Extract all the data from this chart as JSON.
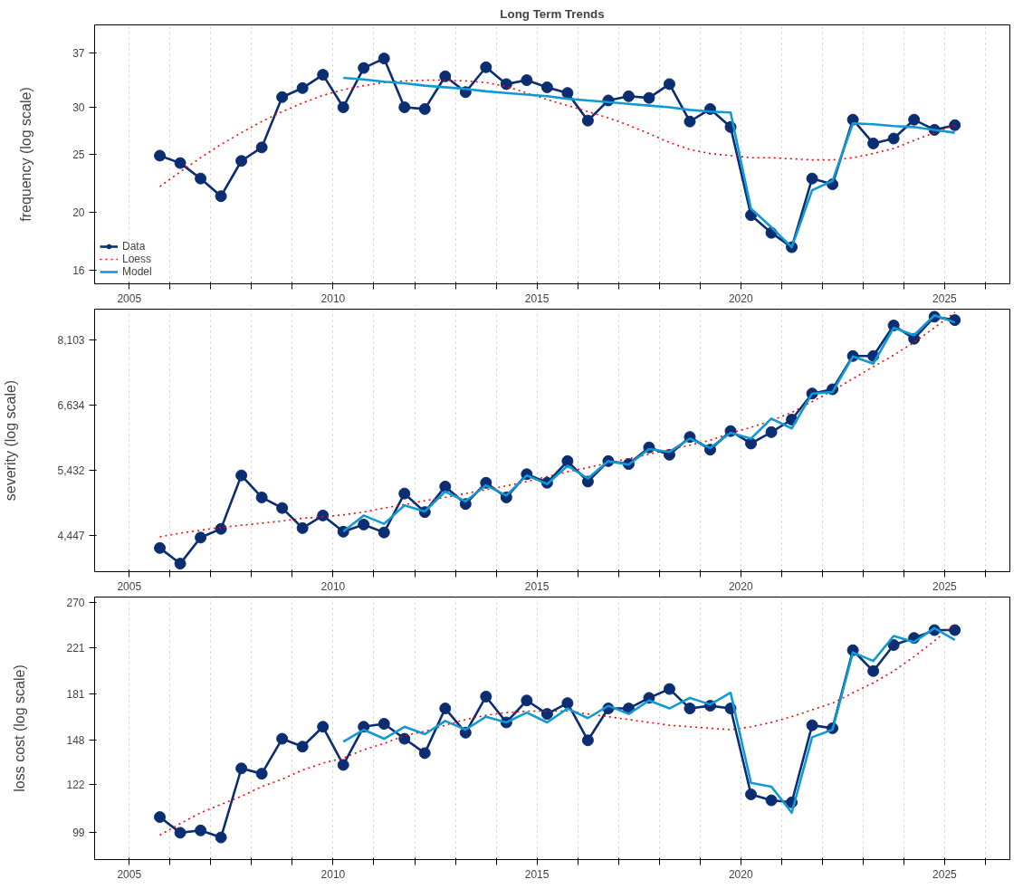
{
  "chart_data": [
    {
      "type": "line",
      "title": "Long Term Trends",
      "ylabel": "frequency (log scale)",
      "log": true,
      "grid": "x",
      "legend": "bottom left",
      "x": [
        2005.75,
        2006.25,
        2006.75,
        2007.25,
        2007.75,
        2008.25,
        2008.75,
        2009.25,
        2009.75,
        2010.25,
        2010.75,
        2011.25,
        2011.75,
        2012.25,
        2012.75,
        2013.25,
        2013.75,
        2014.25,
        2014.75,
        2015.25,
        2015.75,
        2016.25,
        2016.75,
        2017.25,
        2017.75,
        2018.25,
        2018.75,
        2019.25,
        2019.75,
        2020.25,
        2020.75,
        2021.25,
        2021.75,
        2022.25,
        2022.75,
        2023.25,
        2023.75,
        2024.25,
        2024.75,
        2025.25
      ],
      "xlim": [
        2004.15,
        2026.6
      ],
      "xticks": [
        2005,
        {
          "value": 2006,
          "label": null
        },
        {
          "value": 2007,
          "label": null
        },
        {
          "value": 2008,
          "label": null
        },
        {
          "value": 2009,
          "label": null
        },
        2010,
        {
          "value": 2011,
          "label": null
        },
        {
          "value": 2012,
          "label": null
        },
        {
          "value": 2013,
          "label": null
        },
        {
          "value": 2014,
          "label": null
        },
        2015,
        {
          "value": 2016,
          "label": null
        },
        {
          "value": 2017,
          "label": null
        },
        {
          "value": 2018,
          "label": null
        },
        {
          "value": 2019,
          "label": null
        },
        2020,
        {
          "value": 2021,
          "label": null
        },
        {
          "value": 2022,
          "label": null
        },
        {
          "value": 2023,
          "label": null
        },
        {
          "value": 2024,
          "label": null
        },
        2025,
        {
          "value": 2026,
          "label": null
        }
      ],
      "ylim": [
        15.2,
        41.2
      ],
      "yticks": [
        16,
        20,
        25,
        30,
        37
      ],
      "series": [
        {
          "name": "Data",
          "color": "#0b2d72",
          "marker": "circle",
          "line_style": "solid",
          "values": [
            24.9,
            24.2,
            22.8,
            21.3,
            24.4,
            25.7,
            31.2,
            32.3,
            34.0,
            30.0,
            34.9,
            36.2,
            30.0,
            29.8,
            33.8,
            31.8,
            35.0,
            32.8,
            33.3,
            32.4,
            31.7,
            28.5,
            30.8,
            31.3,
            31.1,
            32.8,
            28.4,
            29.8,
            27.8,
            19.8,
            18.5,
            17.5,
            22.8,
            22.3,
            28.6,
            26.1,
            26.6,
            28.6,
            27.5,
            28.0
          ]
        },
        {
          "name": "Loess",
          "color": "#ff0000",
          "marker": "none",
          "line_style": "dotted",
          "values": [
            22.1,
            23.4,
            24.7,
            26.0,
            27.2,
            28.4,
            29.5,
            30.5,
            31.4,
            32.1,
            32.6,
            33.0,
            33.2,
            33.3,
            33.3,
            33.2,
            33.0,
            32.5,
            31.7,
            30.9,
            30.2,
            29.5,
            28.8,
            28.0,
            27.1,
            26.2,
            25.5,
            25.1,
            24.9,
            24.7,
            24.7,
            24.6,
            24.5,
            24.5,
            24.7,
            25.1,
            25.6,
            26.4,
            27.2,
            28.0
          ]
        },
        {
          "name": "Model",
          "color": "#0f9ad6",
          "marker": "none",
          "line_style": "solid",
          "values": [
            null,
            null,
            null,
            null,
            null,
            null,
            null,
            null,
            null,
            33.6,
            33.4,
            33.1,
            32.9,
            32.6,
            32.4,
            32.2,
            31.9,
            31.7,
            31.5,
            31.3,
            31.0,
            30.8,
            30.6,
            30.4,
            30.2,
            30.0,
            29.7,
            29.5,
            29.4,
            20.3,
            18.9,
            17.5,
            21.8,
            22.6,
            28.2,
            28.1,
            27.9,
            27.8,
            27.5,
            27.2
          ]
        }
      ]
    },
    {
      "type": "line",
      "ylabel": "severity (log scale)",
      "log": true,
      "grid": "x",
      "legend": false,
      "x": [
        2005.75,
        2006.25,
        2006.75,
        2007.25,
        2007.75,
        2008.25,
        2008.75,
        2009.25,
        2009.75,
        2010.25,
        2010.75,
        2011.25,
        2011.75,
        2012.25,
        2012.75,
        2013.25,
        2013.75,
        2014.25,
        2014.75,
        2015.25,
        2015.75,
        2016.25,
        2016.75,
        2017.25,
        2017.75,
        2018.25,
        2018.75,
        2019.25,
        2019.75,
        2020.25,
        2020.75,
        2021.25,
        2021.75,
        2022.25,
        2022.75,
        2023.25,
        2023.75,
        2024.25,
        2024.75,
        2025.25
      ],
      "xlim": [
        2004.15,
        2026.6
      ],
      "xticks": [
        2005,
        {
          "value": 2006,
          "label": null
        },
        {
          "value": 2007,
          "label": null
        },
        {
          "value": 2008,
          "label": null
        },
        {
          "value": 2009,
          "label": null
        },
        2010,
        {
          "value": 2011,
          "label": null
        },
        {
          "value": 2012,
          "label": null
        },
        {
          "value": 2013,
          "label": null
        },
        {
          "value": 2014,
          "label": null
        },
        2015,
        {
          "value": 2016,
          "label": null
        },
        {
          "value": 2017,
          "label": null
        },
        {
          "value": 2018,
          "label": null
        },
        {
          "value": 2019,
          "label": null
        },
        2020,
        {
          "value": 2021,
          "label": null
        },
        {
          "value": 2022,
          "label": null
        },
        {
          "value": 2023,
          "label": null
        },
        {
          "value": 2024,
          "label": null
        },
        2025,
        {
          "value": 2026,
          "label": null
        }
      ],
      "ylim": [
        3980,
        8915
      ],
      "yticks": [
        {
          "value": 4447,
          "label": "4,447"
        },
        {
          "value": 5432,
          "label": "5,432"
        },
        {
          "value": 6634,
          "label": "6,634"
        },
        {
          "value": 8103,
          "label": "8,103"
        }
      ],
      "series": [
        {
          "color": "#0b2d72",
          "marker": "circle",
          "line_style": "solid",
          "values": [
            4280,
            4080,
            4420,
            4540,
            5350,
            5000,
            4840,
            4550,
            4730,
            4500,
            4600,
            4490,
            5060,
            4780,
            5170,
            4900,
            5230,
            5000,
            5370,
            5230,
            5590,
            5250,
            5590,
            5540,
            5830,
            5700,
            6020,
            5790,
            6130,
            5900,
            6110,
            6350,
            6880,
            6970,
            7720,
            7720,
            8480,
            8140,
            8710,
            8620
          ]
        },
        {
          "color": "#ff0000",
          "marker": "none",
          "line_style": "dotted",
          "values": [
            4430,
            4480,
            4520,
            4560,
            4590,
            4620,
            4650,
            4690,
            4710,
            4740,
            4780,
            4840,
            4890,
            4950,
            5000,
            5060,
            5120,
            5180,
            5250,
            5330,
            5410,
            5480,
            5560,
            5630,
            5710,
            5790,
            5870,
            5960,
            6090,
            6200,
            6330,
            6490,
            6710,
            6940,
            7200,
            7470,
            7740,
            8050,
            8420,
            8830
          ]
        },
        {
          "color": "#0f9ad6",
          "marker": "none",
          "line_style": "solid",
          "values": [
            null,
            null,
            null,
            null,
            null,
            null,
            null,
            null,
            null,
            4500,
            4730,
            4610,
            4880,
            4790,
            5090,
            4940,
            5190,
            5030,
            5350,
            5210,
            5510,
            5300,
            5590,
            5530,
            5800,
            5750,
            5990,
            5820,
            6100,
            5990,
            6370,
            6180,
            6880,
            6910,
            7710,
            7540,
            8420,
            8230,
            8750,
            8560
          ]
        }
      ]
    },
    {
      "type": "line",
      "ylabel": "loss cost (log scale)",
      "log": true,
      "grid": "x",
      "legend": false,
      "x": [
        2005.75,
        2006.25,
        2006.75,
        2007.25,
        2007.75,
        2008.25,
        2008.75,
        2009.25,
        2009.75,
        2010.25,
        2010.75,
        2011.25,
        2011.75,
        2012.25,
        2012.75,
        2013.25,
        2013.75,
        2014.25,
        2014.75,
        2015.25,
        2015.75,
        2016.25,
        2016.75,
        2017.25,
        2017.75,
        2018.25,
        2018.75,
        2019.25,
        2019.75,
        2020.25,
        2020.75,
        2021.25,
        2021.75,
        2022.25,
        2022.75,
        2023.25,
        2023.75,
        2024.25,
        2024.75,
        2025.25
      ],
      "xlim": [
        2004.15,
        2026.6
      ],
      "xticks": [
        2005,
        {
          "value": 2006,
          "label": null
        },
        {
          "value": 2007,
          "label": null
        },
        {
          "value": 2008,
          "label": null
        },
        {
          "value": 2009,
          "label": null
        },
        2010,
        {
          "value": 2011,
          "label": null
        },
        {
          "value": 2012,
          "label": null
        },
        {
          "value": 2013,
          "label": null
        },
        {
          "value": 2014,
          "label": null
        },
        2015,
        {
          "value": 2016,
          "label": null
        },
        {
          "value": 2017,
          "label": null
        },
        {
          "value": 2018,
          "label": null
        },
        {
          "value": 2019,
          "label": null
        },
        2020,
        {
          "value": 2021,
          "label": null
        },
        {
          "value": 2022,
          "label": null
        },
        {
          "value": 2023,
          "label": null
        },
        {
          "value": 2024,
          "label": null
        },
        2025,
        {
          "value": 2026,
          "label": null
        }
      ],
      "ylim": [
        88.1,
        276
      ],
      "yticks": [
        99,
        122,
        148,
        181,
        221,
        270
      ],
      "series": [
        {
          "color": "#0b2d72",
          "marker": "circle",
          "line_style": "solid",
          "values": [
            106,
            99,
            100,
            97,
            131,
            128,
            149,
            144,
            157,
            133,
            157,
            159,
            149,
            140,
            170,
            153,
            179,
            160,
            176,
            166,
            174,
            148,
            170,
            170,
            178,
            185,
            170,
            172,
            170,
            117,
            114,
            113,
            158,
            156,
            219,
            200,
            224,
            231,
            239,
            239
          ]
        },
        {
          "color": "#ff0000",
          "marker": "none",
          "line_style": "dotted",
          "values": [
            98,
            103,
            108,
            112,
            116,
            121,
            125,
            130,
            134,
            137,
            142,
            146,
            151,
            154,
            158,
            162,
            165,
            167,
            168,
            168,
            168,
            166,
            164,
            162,
            160,
            158,
            157,
            156,
            155,
            157,
            160,
            164,
            169,
            174,
            182,
            190,
            200,
            213,
            228,
            246
          ]
        },
        {
          "color": "#0f9ad6",
          "marker": "none",
          "line_style": "solid",
          "values": [
            null,
            null,
            null,
            null,
            null,
            null,
            null,
            null,
            null,
            147,
            155,
            149,
            157,
            152,
            161,
            155,
            164,
            160,
            167,
            160,
            170,
            163,
            172,
            166,
            176,
            170,
            178,
            173,
            182,
            123,
            121,
            108,
            150,
            155,
            217,
            209,
            233,
            227,
            241,
            229
          ]
        }
      ]
    }
  ]
}
